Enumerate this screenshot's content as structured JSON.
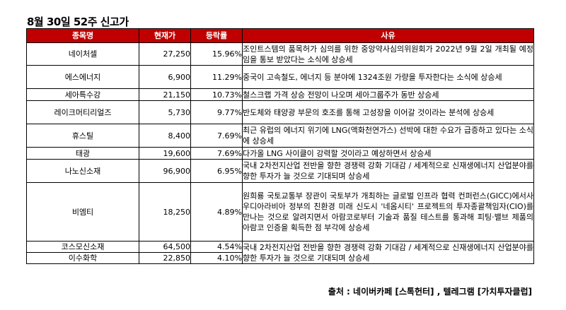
{
  "title": "8월 30일 52주 신고가",
  "headers": {
    "name": "종목명",
    "price": "현재가",
    "change": "등락률",
    "reason": "사유"
  },
  "rows": [
    {
      "name": "네이처셀",
      "price": "27,250",
      "change": "15.96%",
      "reason": "조인트스템의 품목허가 심의를 위한 중앙약사심의위원회가 2022년 9월 2일 개최될 예정임을 통보 받았다는 소식에 상승세"
    },
    {
      "name": "에스에너지",
      "price": "6,900",
      "change": "11.29%",
      "reason": "중국이 고속철도, 에너지 등 분야에 1324조원 가량을 투자한다는 소식에 상승세"
    },
    {
      "name": "세아특수강",
      "price": "21,150",
      "change": "10.73%",
      "reason": "철스크랩 가격 상승 전망이 나오며 세아그룹주가 동반 상승세"
    },
    {
      "name": "레이크머티리얼즈",
      "price": "5,730",
      "change": "9.77%",
      "reason": "반도체와 태양광 부문의 호조를 통해 고성장을 이어갈 것이라는 분석에 상승세"
    },
    {
      "name": "휴스틸",
      "price": "8,400",
      "change": "7.69%",
      "reason": "최근 유럽의 에너지 위기에 LNG(액화천연가스) 선박에 대한 수요가 급증하고 있다는 소식에 상승세"
    },
    {
      "name": "태광",
      "price": "19,600",
      "change": "7.69%",
      "reason": "다가올 LNG 사이클이 강력할 것이라고 예상하면서 상승세"
    },
    {
      "name": "나노신소재",
      "price": "96,900",
      "change": "6.95%",
      "reason": "국내 2차전지산업 전반을 향한 경쟁력 강화 기대감 / 세계적으로 신재생에너지 산업분야를 향한 투자가 늘 것으로 기대되며 상승세"
    },
    {
      "name": "비엠티",
      "price": "18,250",
      "change": "4.89%",
      "reason": "원희룡 국토교통부 장관이 국토부가 개최하는 글로벌 인프라 협력 컨퍼런스(GICC)에서사우디아라비아 정부의 친환경 미래 신도시 '네옴시티' 프로젝트의 투자종괄책임자(CIO)를 만나는 것으로 알려지면서 아람코로부터 기술과 품질 테스트를 통과해 피팅·밸브 제품의 아람코 인증을 획득한 점 부각에 상승세"
    },
    {
      "name": "코스모신소재",
      "price": "64,500",
      "change": "4.54%",
      "reason": "국내 2차전지산업 전반을 향한 경쟁력 강화 기대감 / 세계적으로 신재생에너지 산업분야를 향한 투자가 늘 것으로 기대되며 상승세"
    },
    {
      "name": "이수화학",
      "price": "22,850",
      "change": "4.10%",
      "reason": ""
    }
  ],
  "source": "출처 : 네이버카페 [스톡헌터] , 텔레그램 [가치투자클럽]"
}
